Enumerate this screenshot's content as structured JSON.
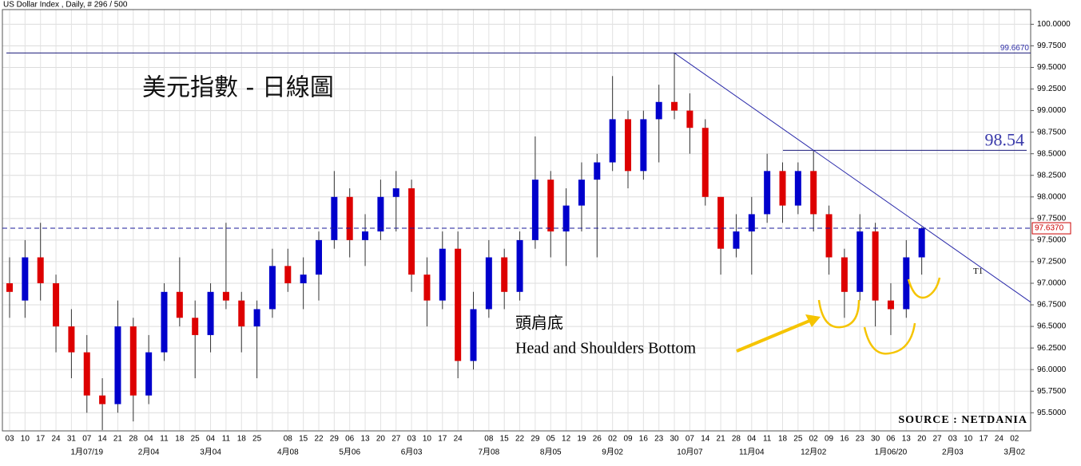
{
  "chart_data": {
    "type": "candlestick",
    "header": "US Dollar Index , Daily, # 296 / 500",
    "title": "美元指數 - 日線圖",
    "categories": [
      "03",
      "10",
      "17",
      "24",
      "31",
      "07",
      "14",
      "21",
      "28",
      "04",
      "11",
      "18",
      "25",
      "04",
      "11",
      "18",
      "25",
      null,
      "08",
      "15",
      "22",
      "29",
      "06",
      "13",
      "20",
      "27",
      "03",
      "10",
      "17",
      "24",
      null,
      "08",
      "15",
      "22",
      "29",
      "05",
      "12",
      "19",
      "26",
      "02",
      "09",
      "16",
      "23",
      "30",
      "07",
      "14",
      "21",
      "28",
      "04",
      "11",
      "18",
      "25",
      "02",
      "09",
      "16",
      "23",
      "30",
      "06",
      "13",
      "20",
      "27",
      "03",
      "10",
      "17",
      "24",
      "02"
    ],
    "months": [
      null,
      null,
      null,
      null,
      null,
      "1月07/19",
      null,
      null,
      null,
      "2月04",
      null,
      null,
      null,
      "3月04",
      null,
      null,
      null,
      null,
      "4月08",
      null,
      null,
      null,
      "5月06",
      null,
      null,
      null,
      "6月03",
      null,
      null,
      null,
      null,
      "7月08",
      null,
      null,
      null,
      "8月05",
      null,
      null,
      null,
      "9月02",
      null,
      null,
      null,
      null,
      "10月07",
      null,
      null,
      null,
      "11月04",
      null,
      null,
      null,
      "12月02",
      null,
      null,
      null,
      null,
      "1月06/20",
      null,
      null,
      null,
      "2月03",
      null,
      null,
      null,
      "3月02"
    ],
    "open": [
      97.0,
      96.8,
      97.3,
      97.0,
      96.5,
      96.2,
      95.7,
      95.6,
      96.5,
      95.7,
      96.2,
      96.9,
      96.6,
      96.4,
      96.9,
      96.8,
      96.5,
      96.7,
      97.2,
      97.0,
      97.1,
      97.5,
      98.0,
      97.5,
      97.6,
      98.0,
      98.1,
      97.1,
      96.8,
      97.4,
      96.1,
      96.7,
      97.3,
      96.9,
      97.5,
      98.2,
      97.6,
      97.9,
      98.2,
      98.4,
      98.9,
      98.3,
      98.9,
      99.1,
      99.0,
      98.8,
      98.0,
      97.4,
      97.6,
      97.8,
      98.3,
      97.9,
      98.3,
      97.8,
      97.3,
      96.9,
      97.6,
      96.8,
      96.7,
      97.3,
      null,
      null,
      null,
      null,
      null,
      null
    ],
    "high": [
      97.3,
      97.5,
      97.7,
      97.1,
      96.7,
      96.4,
      95.9,
      96.8,
      96.6,
      96.4,
      97.0,
      97.3,
      96.8,
      97.0,
      97.7,
      96.9,
      96.8,
      97.4,
      97.4,
      97.3,
      97.6,
      98.3,
      98.1,
      97.8,
      98.2,
      98.3,
      98.2,
      97.3,
      97.6,
      97.6,
      96.9,
      97.5,
      97.4,
      97.6,
      98.7,
      98.3,
      98.1,
      98.4,
      98.5,
      99.4,
      99.0,
      99.0,
      99.3,
      99.667,
      99.2,
      98.9,
      98.0,
      97.8,
      98.0,
      98.5,
      98.4,
      98.4,
      98.54,
      97.9,
      97.4,
      97.8,
      97.7,
      97.0,
      97.5,
      97.65,
      null,
      null,
      null,
      null,
      null,
      null
    ],
    "low": [
      96.6,
      96.6,
      96.8,
      96.2,
      95.9,
      95.5,
      95.3,
      95.5,
      95.4,
      95.6,
      96.1,
      96.5,
      95.9,
      96.2,
      96.7,
      96.2,
      95.9,
      96.6,
      96.9,
      96.7,
      96.8,
      97.4,
      97.3,
      97.2,
      97.5,
      97.6,
      96.9,
      96.5,
      96.7,
      95.9,
      96.0,
      96.6,
      96.7,
      96.8,
      97.4,
      97.3,
      97.2,
      97.6,
      97.3,
      98.3,
      98.1,
      98.2,
      98.4,
      98.9,
      98.5,
      97.9,
      97.1,
      97.3,
      97.1,
      97.7,
      97.7,
      97.8,
      97.6,
      97.1,
      96.6,
      96.8,
      96.5,
      96.4,
      96.6,
      97.1,
      null,
      null,
      null,
      null,
      null,
      null
    ],
    "close": [
      96.9,
      97.3,
      97.0,
      96.5,
      96.2,
      95.7,
      95.6,
      96.5,
      95.7,
      96.2,
      96.9,
      96.6,
      96.4,
      96.9,
      96.8,
      96.5,
      96.7,
      97.2,
      97.0,
      97.1,
      97.5,
      98.0,
      97.5,
      97.6,
      98.0,
      98.1,
      97.1,
      96.8,
      97.4,
      96.1,
      96.7,
      97.3,
      96.9,
      97.5,
      98.2,
      97.6,
      97.9,
      98.2,
      98.4,
      98.9,
      98.3,
      98.9,
      99.1,
      99.0,
      98.8,
      98.0,
      97.4,
      97.6,
      97.8,
      98.3,
      97.9,
      98.3,
      97.8,
      97.3,
      96.9,
      97.6,
      96.8,
      96.7,
      97.3,
      97.637,
      null,
      null,
      null,
      null,
      null,
      null
    ],
    "up_color": "#0000cc",
    "down_color": "#dd0000",
    "ylim": [
      95.29,
      100.17
    ],
    "yticks": [
      {
        "value": 95.5,
        "label": "95.5000"
      },
      {
        "value": 95.75,
        "label": "95.7500"
      },
      {
        "value": 96.0,
        "label": "96.0000"
      },
      {
        "value": 96.25,
        "label": "96.2500"
      },
      {
        "value": 96.5,
        "label": "96.5000"
      },
      {
        "value": 96.75,
        "label": "96.7500"
      },
      {
        "value": 97.0,
        "label": "97.0000"
      },
      {
        "value": 97.25,
        "label": "97.2500"
      },
      {
        "value": 97.5,
        "label": "97.5000"
      },
      {
        "value": 97.75,
        "label": "97.7500"
      },
      {
        "value": 98.0,
        "label": "98.0000"
      },
      {
        "value": 98.25,
        "label": "98.2500"
      },
      {
        "value": 98.5,
        "label": "98.5000"
      },
      {
        "value": 98.75,
        "label": "98.7500"
      },
      {
        "value": 99.0,
        "label": "99.0000"
      },
      {
        "value": 99.25,
        "label": "99.2500"
      },
      {
        "value": 99.5,
        "label": "99.5000"
      },
      {
        "value": 99.75,
        "label": "99.7500"
      },
      {
        "value": 100.0,
        "label": "100.0000"
      }
    ],
    "grid": true,
    "hlines": [
      {
        "value": 99.667,
        "label": "99.6670"
      },
      {
        "value": 98.54,
        "label": "98.54"
      },
      {
        "value": 97.637,
        "label": "97.6370"
      }
    ],
    "trendline_label": "T1",
    "annotations": [
      "頭肩底",
      "Head and Shoulders Bottom"
    ],
    "source": "SOURCE : NETDANIA"
  }
}
